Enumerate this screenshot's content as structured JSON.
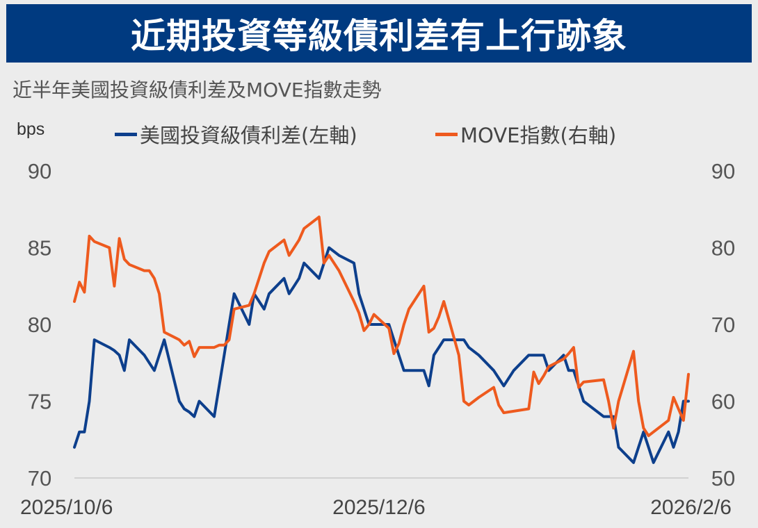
{
  "banner": {
    "title": "近期投資等級債利差有上行跡象"
  },
  "chart_data": {
    "type": "line",
    "title": "近半年美國投資級債利差及MOVE指數走勢",
    "y_unit_label": "bps",
    "legend_position": "top",
    "grid": false,
    "x_ticks": [
      "2025/10/6",
      "2025/12/6",
      "2026/2/6"
    ],
    "x_range": [
      "2025-10-06",
      "2026-02-06"
    ],
    "y_left": {
      "ticks": [
        "70",
        "75",
        "80",
        "85",
        "90"
      ],
      "range": [
        70,
        90
      ]
    },
    "y_right": {
      "ticks": [
        "50",
        "60",
        "70",
        "80",
        "90"
      ],
      "range": [
        50,
        90
      ]
    },
    "series": [
      {
        "name": "美國投資級債利差(左軸)",
        "axis": "left",
        "color": "#0d3f8c",
        "points": [
          [
            "2025-10-06",
            72
          ],
          [
            "2025-10-07",
            73
          ],
          [
            "2025-10-08",
            73
          ],
          [
            "2025-10-09",
            75
          ],
          [
            "2025-10-10",
            79
          ],
          [
            "2025-10-13",
            78.5
          ],
          [
            "2025-10-14",
            78.3
          ],
          [
            "2025-10-15",
            78
          ],
          [
            "2025-10-16",
            77
          ],
          [
            "2025-10-17",
            79
          ],
          [
            "2025-10-20",
            78
          ],
          [
            "2025-10-21",
            77.5
          ],
          [
            "2025-10-22",
            77
          ],
          [
            "2025-10-23",
            78
          ],
          [
            "2025-10-24",
            79
          ],
          [
            "2025-10-27",
            75
          ],
          [
            "2025-10-28",
            74.5
          ],
          [
            "2025-10-29",
            74.3
          ],
          [
            "2025-10-30",
            74
          ],
          [
            "2025-10-31",
            75
          ],
          [
            "2025-11-03",
            74
          ],
          [
            "2025-11-04",
            76
          ],
          [
            "2025-11-05",
            78
          ],
          [
            "2025-11-06",
            80
          ],
          [
            "2025-11-07",
            82
          ],
          [
            "2025-11-10",
            80
          ],
          [
            "2025-11-11",
            82
          ],
          [
            "2025-11-12",
            81.5
          ],
          [
            "2025-11-13",
            81
          ],
          [
            "2025-11-14",
            82
          ],
          [
            "2025-11-17",
            83
          ],
          [
            "2025-11-18",
            82
          ],
          [
            "2025-11-19",
            82.5
          ],
          [
            "2025-11-20",
            83
          ],
          [
            "2025-11-21",
            84
          ],
          [
            "2025-11-24",
            83
          ],
          [
            "2025-11-25",
            84
          ],
          [
            "2025-11-26",
            85
          ],
          [
            "2025-11-28",
            84.5
          ],
          [
            "2025-12-01",
            84
          ],
          [
            "2025-12-02",
            82
          ],
          [
            "2025-12-03",
            81
          ],
          [
            "2025-12-04",
            80
          ],
          [
            "2025-12-05",
            80
          ],
          [
            "2025-12-08",
            80
          ],
          [
            "2025-12-09",
            79
          ],
          [
            "2025-12-10",
            78
          ],
          [
            "2025-12-11",
            77
          ],
          [
            "2025-12-12",
            77
          ],
          [
            "2025-12-15",
            77
          ],
          [
            "2025-12-16",
            76
          ],
          [
            "2025-12-17",
            78
          ],
          [
            "2025-12-18",
            78.5
          ],
          [
            "2025-12-19",
            79
          ],
          [
            "2025-12-22",
            79
          ],
          [
            "2025-12-23",
            79
          ],
          [
            "2025-12-24",
            78.5
          ],
          [
            "2025-12-26",
            78
          ],
          [
            "2025-12-29",
            77
          ],
          [
            "2025-12-30",
            76.5
          ],
          [
            "2025-12-31",
            76
          ],
          [
            "2026-01-02",
            77
          ],
          [
            "2026-01-05",
            78
          ],
          [
            "2026-01-06",
            78
          ],
          [
            "2026-01-07",
            78
          ],
          [
            "2026-01-08",
            78
          ],
          [
            "2026-01-09",
            77
          ],
          [
            "2026-01-12",
            78
          ],
          [
            "2026-01-13",
            77
          ],
          [
            "2026-01-14",
            77
          ],
          [
            "2026-01-15",
            76
          ],
          [
            "2026-01-16",
            75
          ],
          [
            "2026-01-20",
            74
          ],
          [
            "2026-01-21",
            74
          ],
          [
            "2026-01-22",
            74
          ],
          [
            "2026-01-23",
            72
          ],
          [
            "2026-01-26",
            71
          ],
          [
            "2026-01-27",
            72
          ],
          [
            "2026-01-28",
            73
          ],
          [
            "2026-01-29",
            72
          ],
          [
            "2026-01-30",
            71
          ],
          [
            "2026-02-02",
            73
          ],
          [
            "2026-02-03",
            72
          ],
          [
            "2026-02-04",
            73
          ],
          [
            "2026-02-05",
            75
          ],
          [
            "2026-02-06",
            75
          ]
        ]
      },
      {
        "name": "MOVE指數(右軸)",
        "axis": "right",
        "color": "#ee5a1e",
        "points": [
          [
            "2025-10-06",
            73
          ],
          [
            "2025-10-07",
            75.5
          ],
          [
            "2025-10-08",
            74.2
          ],
          [
            "2025-10-09",
            81.5
          ],
          [
            "2025-10-10",
            80.8
          ],
          [
            "2025-10-13",
            80
          ],
          [
            "2025-10-14",
            75
          ],
          [
            "2025-10-15",
            81.2
          ],
          [
            "2025-10-16",
            78.5
          ],
          [
            "2025-10-17",
            77.8
          ],
          [
            "2025-10-20",
            77
          ],
          [
            "2025-10-21",
            77
          ],
          [
            "2025-10-22",
            76
          ],
          [
            "2025-10-23",
            74
          ],
          [
            "2025-10-24",
            69
          ],
          [
            "2025-10-27",
            68
          ],
          [
            "2025-10-28",
            67.3
          ],
          [
            "2025-10-29",
            67.8
          ],
          [
            "2025-10-30",
            65.8
          ],
          [
            "2025-10-31",
            67
          ],
          [
            "2025-11-03",
            67
          ],
          [
            "2025-11-04",
            67.3
          ],
          [
            "2025-11-05",
            67.3
          ],
          [
            "2025-11-06",
            68
          ],
          [
            "2025-11-07",
            72
          ],
          [
            "2025-11-10",
            72.5
          ],
          [
            "2025-11-11",
            74
          ],
          [
            "2025-11-12",
            76
          ],
          [
            "2025-11-13",
            78
          ],
          [
            "2025-11-14",
            79.5
          ],
          [
            "2025-11-17",
            81
          ],
          [
            "2025-11-18",
            79
          ],
          [
            "2025-11-19",
            80
          ],
          [
            "2025-11-20",
            81
          ],
          [
            "2025-11-21",
            82.5
          ],
          [
            "2025-11-24",
            84
          ],
          [
            "2025-11-25",
            78
          ],
          [
            "2025-11-26",
            79
          ],
          [
            "2025-11-28",
            77
          ],
          [
            "2025-12-01",
            73
          ],
          [
            "2025-12-02",
            71.5
          ],
          [
            "2025-12-03",
            69.2
          ],
          [
            "2025-12-04",
            70
          ],
          [
            "2025-12-05",
            71.3
          ],
          [
            "2025-12-08",
            69.5
          ],
          [
            "2025-12-09",
            66.2
          ],
          [
            "2025-12-10",
            67.5
          ],
          [
            "2025-12-11",
            70
          ],
          [
            "2025-12-12",
            72
          ],
          [
            "2025-12-15",
            75
          ],
          [
            "2025-12-16",
            69
          ],
          [
            "2025-12-17",
            69.5
          ],
          [
            "2025-12-18",
            71
          ],
          [
            "2025-12-19",
            73
          ],
          [
            "2025-12-22",
            66
          ],
          [
            "2025-12-23",
            60
          ],
          [
            "2025-12-24",
            59.5
          ],
          [
            "2025-12-26",
            60.5
          ],
          [
            "2025-12-29",
            61.8
          ],
          [
            "2025-12-30",
            59.5
          ],
          [
            "2025-12-31",
            58.5
          ],
          [
            "2026-01-02",
            58.7
          ],
          [
            "2026-01-05",
            59
          ],
          [
            "2026-01-06",
            63.8
          ],
          [
            "2026-01-07",
            62.3
          ],
          [
            "2026-01-08",
            63.3
          ],
          [
            "2026-01-09",
            64.5
          ],
          [
            "2026-01-12",
            65.5
          ],
          [
            "2026-01-13",
            66.2
          ],
          [
            "2026-01-14",
            67
          ],
          [
            "2026-01-15",
            61.8
          ],
          [
            "2026-01-16",
            62.5
          ],
          [
            "2026-01-20",
            62.8
          ],
          [
            "2026-01-21",
            60
          ],
          [
            "2026-01-22",
            56.5
          ],
          [
            "2026-01-23",
            60
          ],
          [
            "2026-01-26",
            66.5
          ],
          [
            "2026-01-27",
            60
          ],
          [
            "2026-01-28",
            56.5
          ],
          [
            "2026-01-29",
            55.5
          ],
          [
            "2026-01-30",
            56
          ],
          [
            "2026-02-02",
            57.5
          ],
          [
            "2026-02-03",
            60.5
          ],
          [
            "2026-02-04",
            59
          ],
          [
            "2026-02-05",
            57.5
          ],
          [
            "2026-02-06",
            63.5
          ]
        ]
      }
    ]
  }
}
